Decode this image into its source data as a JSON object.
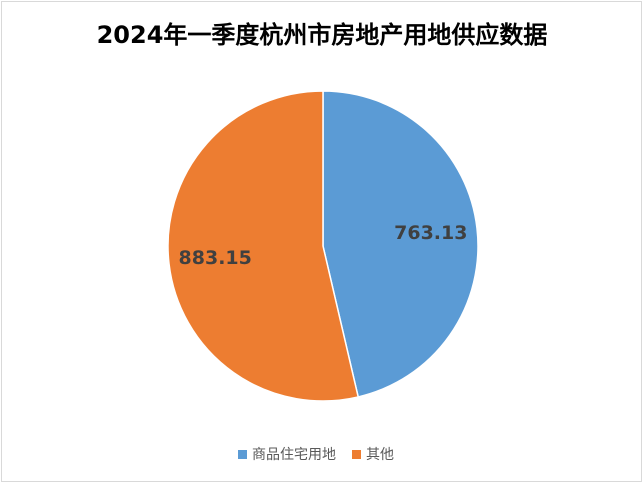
{
  "chart_data": {
    "type": "pie",
    "title": "2024年一季度杭州市房地产用地供应数据",
    "categories": [
      "商品住宅用地",
      "其他"
    ],
    "values": [
      763.13,
      883.15
    ],
    "colors": [
      "#5b9bd5",
      "#ed7d31"
    ],
    "legend": "bottom"
  }
}
